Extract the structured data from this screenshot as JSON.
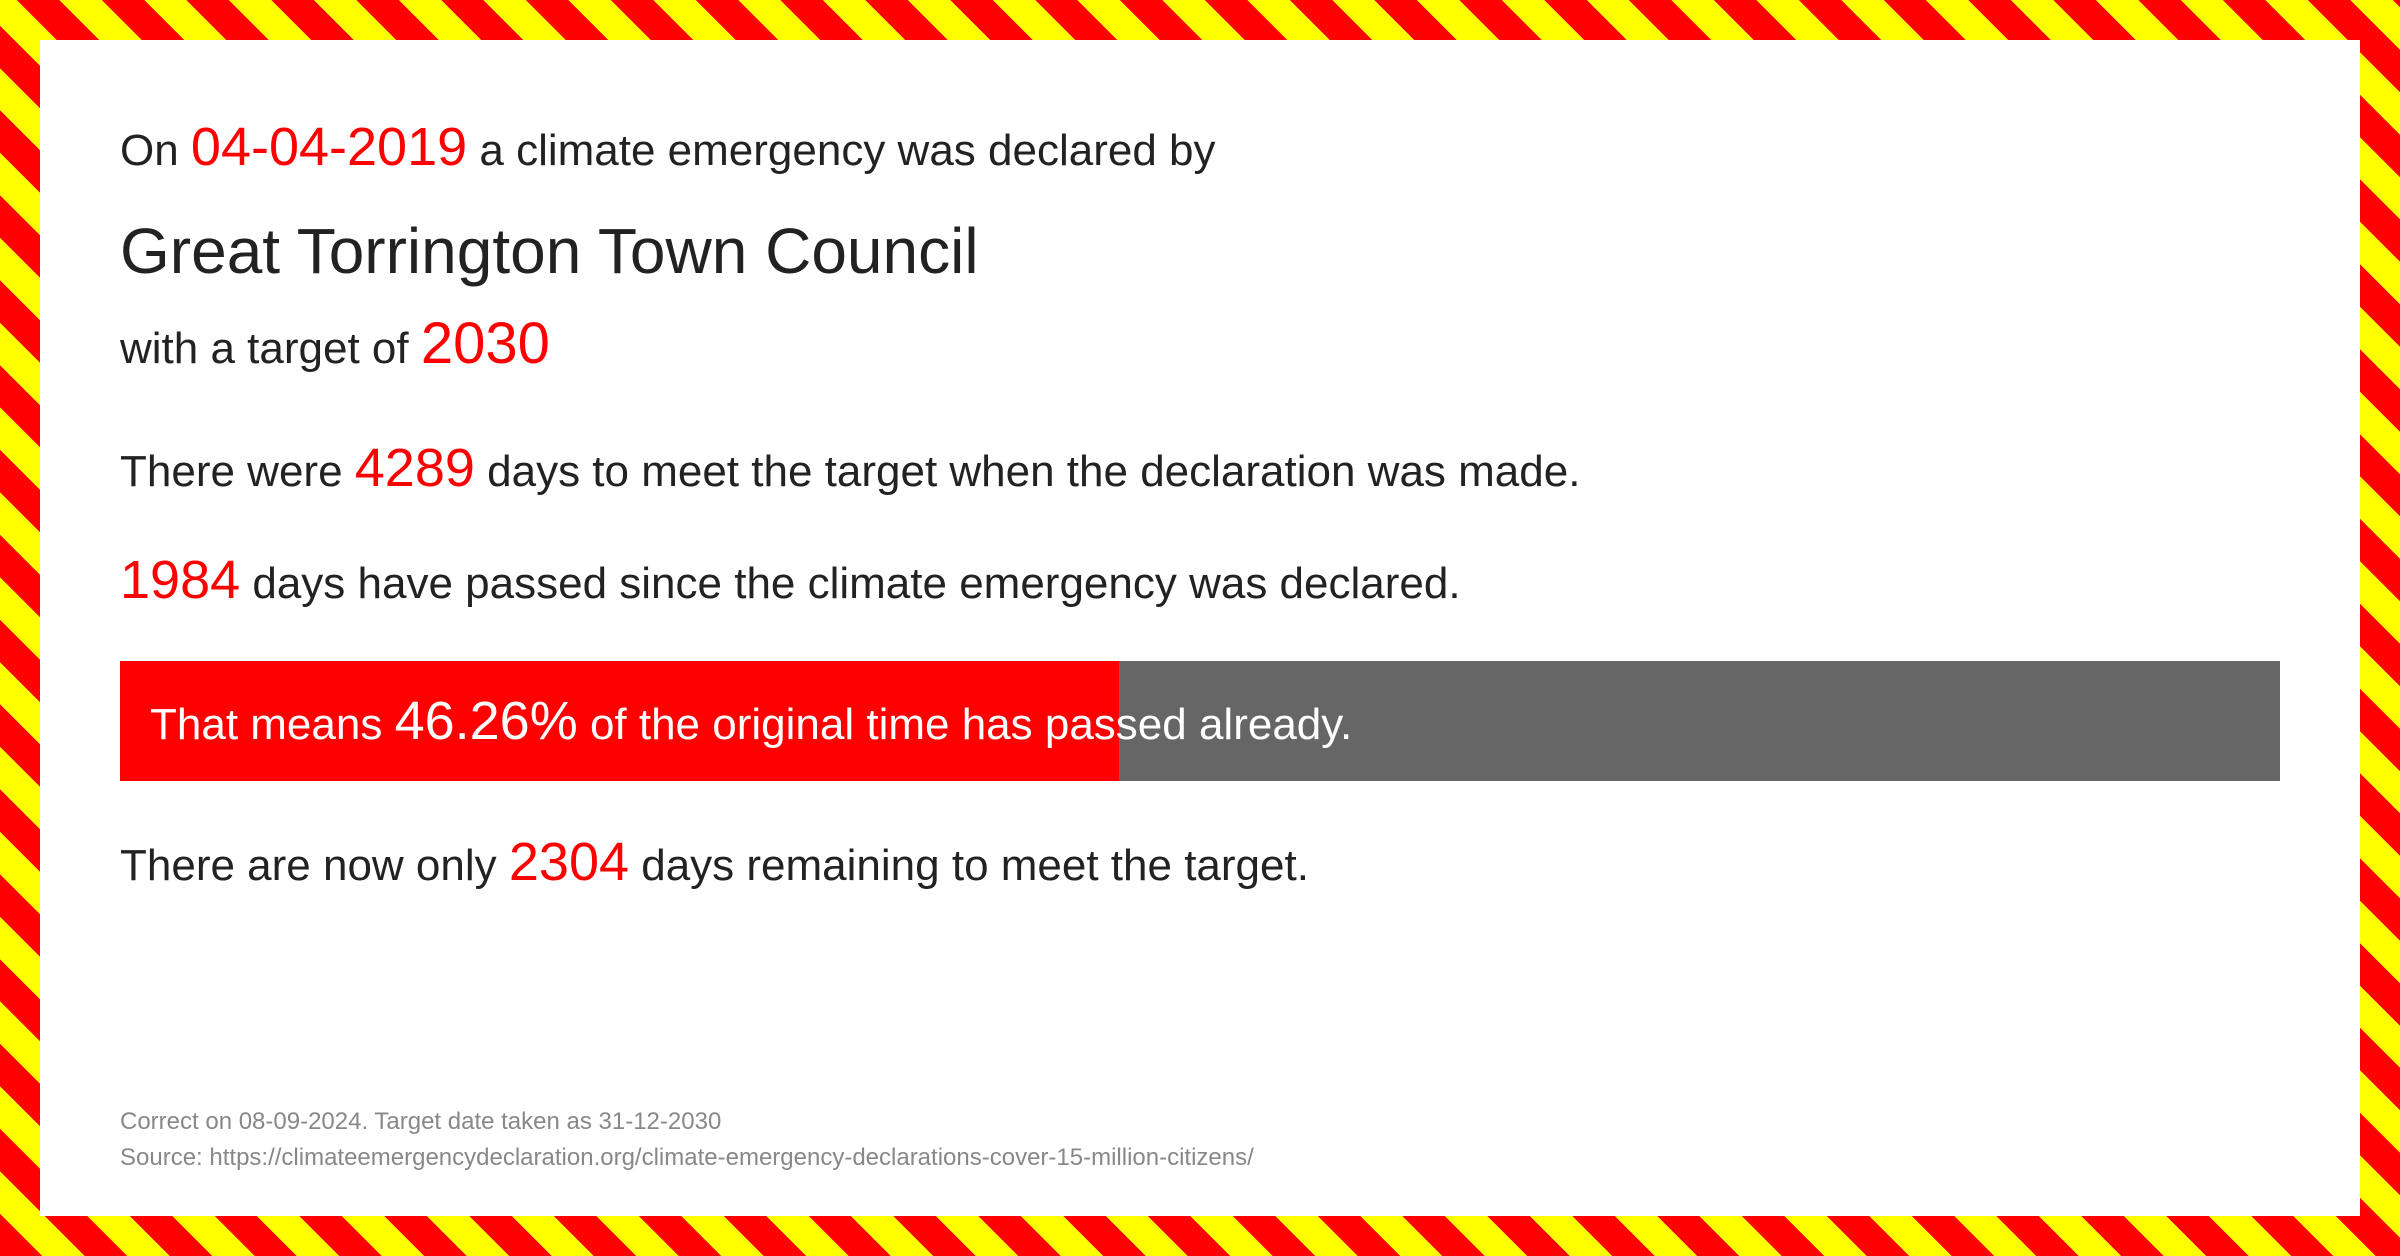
{
  "border": {
    "color1": "#ff0000",
    "color2": "#ffff00",
    "stripe_width": 30,
    "thickness": 40
  },
  "colors": {
    "text": "#222222",
    "highlight": "#ff0000",
    "progress_fill": "#ff0000",
    "progress_bg": "#666666",
    "footer": "#888888",
    "background": "#ffffff"
  },
  "intro": {
    "prefix": "On ",
    "date": "04-04-2019",
    "suffix": " a climate emergency was declared by"
  },
  "council": "Great Torrington Town Council",
  "target": {
    "prefix": "with a target of  ",
    "year": "2030"
  },
  "days_total": {
    "prefix": "There were ",
    "value": "4289",
    "suffix": "  days to meet the target when the declaration was made."
  },
  "days_passed": {
    "value": "1984",
    "suffix": " days have passed since the climate emergency was declared."
  },
  "progress": {
    "prefix": "That means ",
    "value": "46.26%",
    "percent_num": 46.26,
    "suffix": " of the original time has passed already."
  },
  "days_remaining": {
    "prefix": "There are now only ",
    "value": "2304",
    "suffix": " days remaining to meet the target."
  },
  "footer": {
    "line1": "Correct on 08-09-2024. Target date taken as 31-12-2030",
    "line2": "Source: https://climateemergencydeclaration.org/climate-emergency-declarations-cover-15-million-citizens/"
  }
}
